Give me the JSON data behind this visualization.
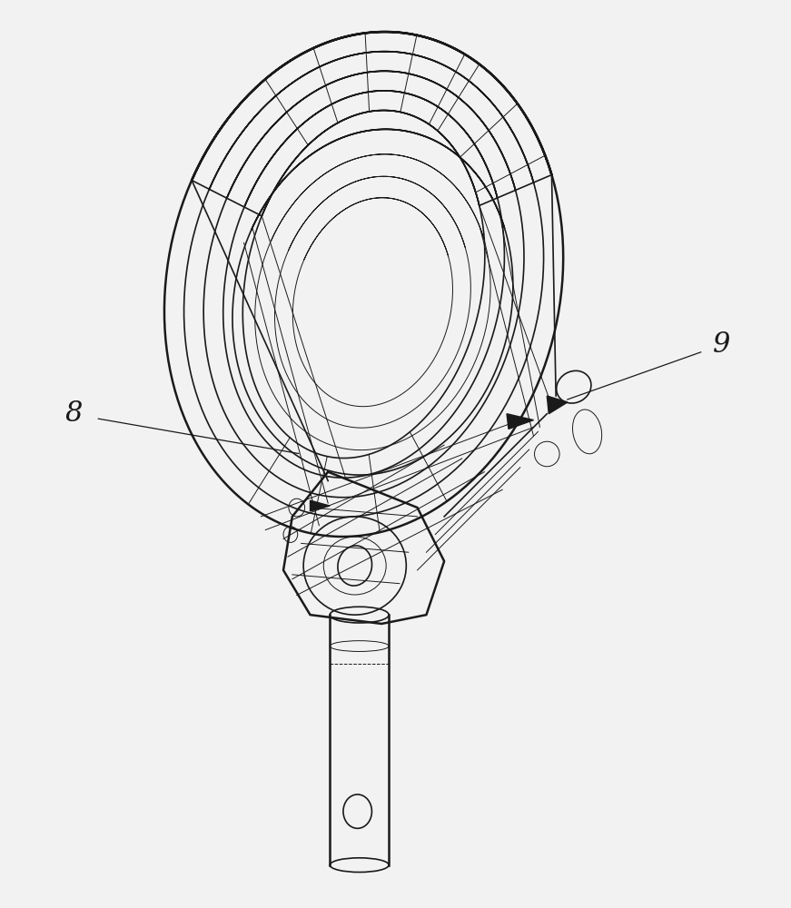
{
  "background_color": "#f2f2f2",
  "line_color": "#1a1a1a",
  "figsize": [
    8.71,
    10.0
  ],
  "dpi": 100,
  "label_8": "8",
  "label_9": "9"
}
